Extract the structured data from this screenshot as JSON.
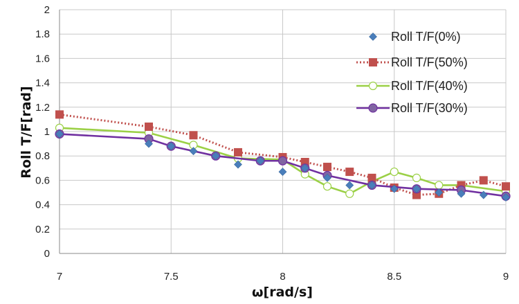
{
  "chart_data": {
    "type": "line",
    "title": "",
    "xlabel": "ω[rad/s]",
    "ylabel": "Roll T/F[rad]",
    "xlim": [
      7,
      9
    ],
    "ylim": [
      0,
      2
    ],
    "x_ticks": [
      "7",
      "7.5",
      "8",
      "8.5",
      "9"
    ],
    "y_ticks": [
      "0",
      "0.2",
      "0.4",
      "0.6",
      "0.8",
      "1",
      "1.2",
      "1.4",
      "1.6",
      "1.8",
      "2"
    ],
    "grid": true,
    "legend_position": "right",
    "series": [
      {
        "name": "Roll T/F(0%)",
        "style": "markers-only",
        "marker": "diamond",
        "color": "#4a7ebb",
        "x": [
          7.0,
          7.4,
          7.5,
          7.6,
          7.7,
          7.8,
          7.9,
          8.0,
          8.1,
          8.2,
          8.3,
          8.4,
          8.5,
          8.6,
          8.7,
          8.8,
          8.9,
          9.0
        ],
        "y": [
          0.98,
          0.9,
          0.88,
          0.84,
          0.8,
          0.73,
          0.76,
          0.67,
          0.7,
          0.62,
          0.56,
          0.56,
          0.53,
          0.53,
          0.5,
          0.49,
          0.48,
          0.46
        ]
      },
      {
        "name": "Roll T/F(50%)",
        "style": "dotted-line",
        "marker": "square",
        "color": "#c0504d",
        "x": [
          7.0,
          7.4,
          7.6,
          7.8,
          8.0,
          8.1,
          8.2,
          8.3,
          8.4,
          8.5,
          8.6,
          8.7,
          8.8,
          8.9,
          9.0
        ],
        "y": [
          1.14,
          1.04,
          0.97,
          0.83,
          0.79,
          0.75,
          0.71,
          0.67,
          0.62,
          0.54,
          0.48,
          0.49,
          0.56,
          0.6,
          0.55
        ]
      },
      {
        "name": "Roll T/F(40%)",
        "style": "solid-line",
        "marker": "circle-open",
        "color": "#9bd046",
        "x": [
          7.0,
          7.4,
          7.6,
          7.8,
          8.0,
          8.1,
          8.2,
          8.3,
          8.4,
          8.5,
          8.6,
          8.7,
          8.8,
          9.0
        ],
        "y": [
          1.03,
          0.99,
          0.89,
          0.78,
          0.77,
          0.65,
          0.55,
          0.49,
          0.59,
          0.67,
          0.62,
          0.56,
          0.56,
          0.51
        ]
      },
      {
        "name": "Roll T/F(30%)",
        "style": "solid-line",
        "marker": "circle",
        "color": "#7030a0",
        "x": [
          7.0,
          7.4,
          7.5,
          7.7,
          7.9,
          8.0,
          8.1,
          8.2,
          8.4,
          8.6,
          8.8,
          9.0
        ],
        "y": [
          0.98,
          0.94,
          0.88,
          0.8,
          0.76,
          0.76,
          0.7,
          0.64,
          0.56,
          0.53,
          0.52,
          0.47
        ]
      }
    ]
  }
}
